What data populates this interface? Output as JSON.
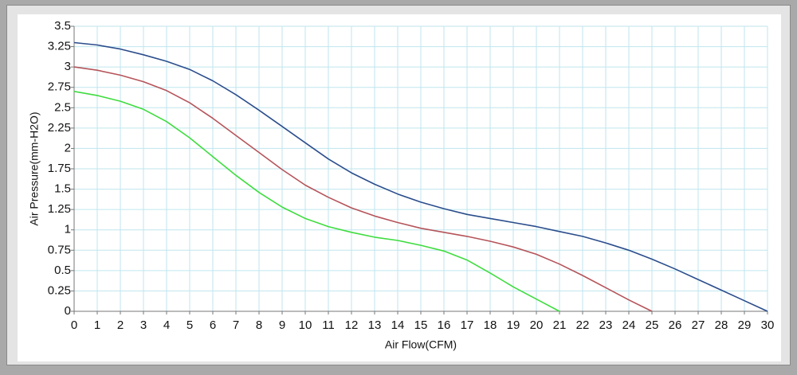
{
  "chart_data": {
    "type": "line",
    "xlabel": "Air Flow(CFM)",
    "ylabel": "Air Pressure(mm-H2O)",
    "x": [
      0,
      1,
      2,
      3,
      4,
      5,
      6,
      7,
      8,
      9,
      10,
      11,
      12,
      13,
      14,
      15,
      16,
      17,
      18,
      19,
      20,
      21,
      22,
      23,
      24,
      25,
      26,
      27,
      28,
      29,
      30
    ],
    "series": [
      {
        "color": "#2b4d8c",
        "values": [
          3.3,
          3.27,
          3.22,
          3.15,
          3.07,
          2.97,
          2.83,
          2.66,
          2.47,
          2.27,
          2.07,
          1.87,
          1.7,
          1.56,
          1.44,
          1.34,
          1.26,
          1.19,
          1.14,
          1.09,
          1.04,
          0.98,
          0.92,
          0.84,
          0.75,
          0.64,
          0.52,
          0.39,
          0.26,
          0.13,
          0
        ]
      },
      {
        "color": "#b5545a",
        "values": [
          3.0,
          2.96,
          2.9,
          2.82,
          2.71,
          2.56,
          2.37,
          2.16,
          1.95,
          1.74,
          1.55,
          1.4,
          1.27,
          1.17,
          1.09,
          1.02,
          0.97,
          0.92,
          0.86,
          0.79,
          0.7,
          0.58,
          0.44,
          0.29,
          0.14,
          0,
          null,
          null,
          null,
          null,
          null
        ]
      },
      {
        "color": "#3fdc3f",
        "values": [
          2.7,
          2.65,
          2.58,
          2.48,
          2.33,
          2.13,
          1.9,
          1.67,
          1.46,
          1.28,
          1.14,
          1.04,
          0.97,
          0.91,
          0.87,
          0.81,
          0.74,
          0.63,
          0.47,
          0.3,
          0.15,
          0,
          null,
          null,
          null,
          null,
          null,
          null,
          null,
          null,
          null
        ]
      }
    ],
    "xlim": [
      0,
      30
    ],
    "xticks": [
      0,
      1,
      2,
      3,
      4,
      5,
      6,
      7,
      8,
      9,
      10,
      11,
      12,
      13,
      14,
      15,
      16,
      17,
      18,
      19,
      20,
      21,
      22,
      23,
      24,
      25,
      26,
      27,
      28,
      29,
      30
    ],
    "ylim": [
      0,
      3.5
    ],
    "yticks": [
      0,
      0.25,
      0.5,
      0.75,
      1,
      1.25,
      1.5,
      1.75,
      2,
      2.25,
      2.5,
      2.75,
      3,
      3.25,
      3.5
    ],
    "grid": true
  }
}
